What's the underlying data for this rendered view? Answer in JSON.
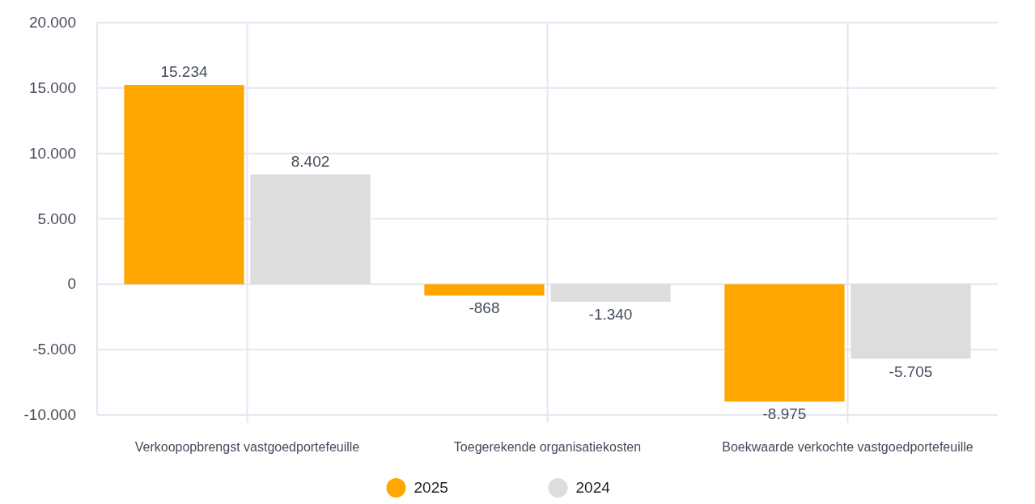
{
  "chart_data": {
    "type": "bar",
    "categories": [
      "Verkoopopbrengst vastgoedportefeuille",
      "Toegerekende organisatiekosten",
      "Boekwaarde verkochte vastgoedportefeuille"
    ],
    "series": [
      {
        "name": "2025",
        "color": "#ffa600",
        "values": [
          15234,
          -868,
          -8975
        ],
        "value_labels": [
          "15.234",
          "-868",
          "-8.975"
        ]
      },
      {
        "name": "2024",
        "color": "#dddddd",
        "values": [
          8402,
          -1340,
          -5705
        ],
        "value_labels": [
          "8.402",
          "-1.340",
          "-5.705"
        ]
      }
    ],
    "ylim": [
      -10000,
      20000
    ],
    "yticks": [
      {
        "value": -10000,
        "label": "-10.000"
      },
      {
        "value": -5000,
        "label": "-5.000"
      },
      0,
      {
        "value": 5000,
        "label": "5.000"
      },
      {
        "value": 10000,
        "label": "10.000"
      },
      {
        "value": 15000,
        "label": "15.000"
      },
      {
        "value": 20000,
        "label": "20.000"
      }
    ],
    "grid": true,
    "legend": "bottom",
    "marker": "circle"
  }
}
